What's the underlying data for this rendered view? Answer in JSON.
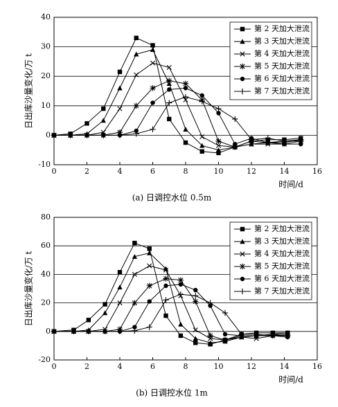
{
  "chart_data": [
    {
      "type": "line",
      "caption": "(a) 日调控水位 0.5m",
      "x_label": "时间/d",
      "y_label": "日出库沙量变化/万 t",
      "xlim": [
        0,
        16
      ],
      "xticks": [
        0,
        2,
        4,
        6,
        8,
        10,
        12,
        14,
        16
      ],
      "ylim": [
        -10,
        40
      ],
      "yticks": [
        -10,
        0,
        10,
        20,
        30,
        40
      ],
      "grid": true,
      "legend": "upper right",
      "x": [
        0,
        1,
        2,
        3,
        4,
        5,
        6,
        7,
        8,
        9,
        10,
        11,
        12,
        13,
        14,
        15
      ],
      "series": [
        {
          "name": "第 2 天加大泄流",
          "color": "#000000",
          "marker": "square",
          "values": [
            0,
            0.5,
            4,
            9,
            21.5,
            33,
            30.5,
            5.5,
            -2.5,
            -5.5,
            -6,
            -4,
            -2,
            -1.5,
            -1.5,
            -1
          ]
        },
        {
          "name": "第 3 天加大泄流",
          "color": "#000000",
          "marker": "triangle",
          "values": [
            0,
            0,
            0.5,
            5,
            16,
            27.5,
            29,
            17.5,
            2,
            -3.5,
            -5,
            -4,
            -3,
            -2.5,
            -2.5,
            -1.5
          ]
        },
        {
          "name": "第 4 天加大泄流",
          "color": "#000000",
          "marker": "x",
          "values": [
            0,
            0,
            0,
            1,
            9,
            20.5,
            24.5,
            23,
            12,
            -0.5,
            -3.5,
            -4,
            -3,
            -3,
            -3,
            -2
          ]
        },
        {
          "name": "第 5 天加大泄流",
          "color": "#000000",
          "marker": "star",
          "values": [
            0,
            0,
            0,
            0,
            1,
            10,
            16,
            18.5,
            17.5,
            12,
            -2,
            -4,
            -2,
            -2.5,
            -2,
            -2
          ]
        },
        {
          "name": "第 6 天加大泄流",
          "color": "#000000",
          "marker": "circle",
          "values": [
            0,
            0,
            0,
            0,
            0,
            1.5,
            11,
            15.5,
            16,
            13.5,
            7.5,
            -3,
            -1,
            -2.5,
            -3,
            -3
          ]
        },
        {
          "name": "第 7 天加大泄流",
          "color": "#000000",
          "marker": "plus",
          "values": [
            0,
            0,
            0,
            0,
            0,
            0.5,
            2,
            11,
            13,
            11.5,
            9,
            5.5,
            -1.5,
            -1,
            -2,
            -1.5
          ]
        }
      ]
    },
    {
      "type": "line",
      "caption": "(b) 日调控水位 1m",
      "x_label": "时间/d",
      "y_label": "日出库沙量变化/万 t",
      "xlim": [
        0,
        16
      ],
      "xticks": [
        0,
        2,
        4,
        6,
        8,
        10,
        12,
        14,
        16
      ],
      "ylim": [
        -20,
        80
      ],
      "yticks": [
        -20,
        0,
        20,
        40,
        60,
        80
      ],
      "grid": true,
      "legend": "upper right",
      "x": [
        0,
        1.2,
        2.1,
        3.1,
        4,
        4.9,
        5.8,
        6.8,
        7.7,
        8.6,
        9.5,
        10.4,
        11.4,
        12.3,
        13.3,
        14.2
      ],
      "series": [
        {
          "name": "第 2 天加大泄流",
          "color": "#000000",
          "marker": "square",
          "values": [
            0,
            1,
            8,
            19,
            41.5,
            62,
            58,
            11,
            -3,
            -8,
            -9,
            -6,
            -2,
            -1,
            -1,
            -1
          ]
        },
        {
          "name": "第 3 天加大泄流",
          "color": "#000000",
          "marker": "triangle",
          "values": [
            0,
            0,
            1,
            13,
            31,
            52.5,
            55,
            44,
            5,
            -5,
            -8,
            -7,
            -4,
            -3,
            -2,
            -1
          ]
        },
        {
          "name": "第 4 天加大泄流",
          "color": "#000000",
          "marker": "x",
          "values": [
            0,
            0,
            0,
            1.5,
            20,
            40,
            46,
            43,
            25,
            1,
            -5,
            -6,
            -4,
            -5,
            -3,
            -2
          ]
        },
        {
          "name": "第 5 天加大泄流",
          "color": "#000000",
          "marker": "star",
          "values": [
            0,
            0,
            0,
            0,
            1.5,
            20,
            32,
            37,
            36,
            21,
            -3,
            -6,
            -3,
            -3,
            -2,
            -3
          ]
        },
        {
          "name": "第 6 天加大泄流",
          "color": "#000000",
          "marker": "circle",
          "values": [
            0,
            0,
            0,
            0,
            0,
            3,
            21,
            32,
            33,
            29,
            18,
            -2,
            -3,
            -3,
            -3,
            -4
          ]
        },
        {
          "name": "第 7 天加大泄流",
          "color": "#000000",
          "marker": "plus",
          "values": [
            0,
            0,
            0,
            0,
            0,
            0.5,
            3,
            22,
            26,
            25,
            20,
            13,
            -2,
            -2,
            -3,
            -3
          ]
        }
      ]
    }
  ]
}
